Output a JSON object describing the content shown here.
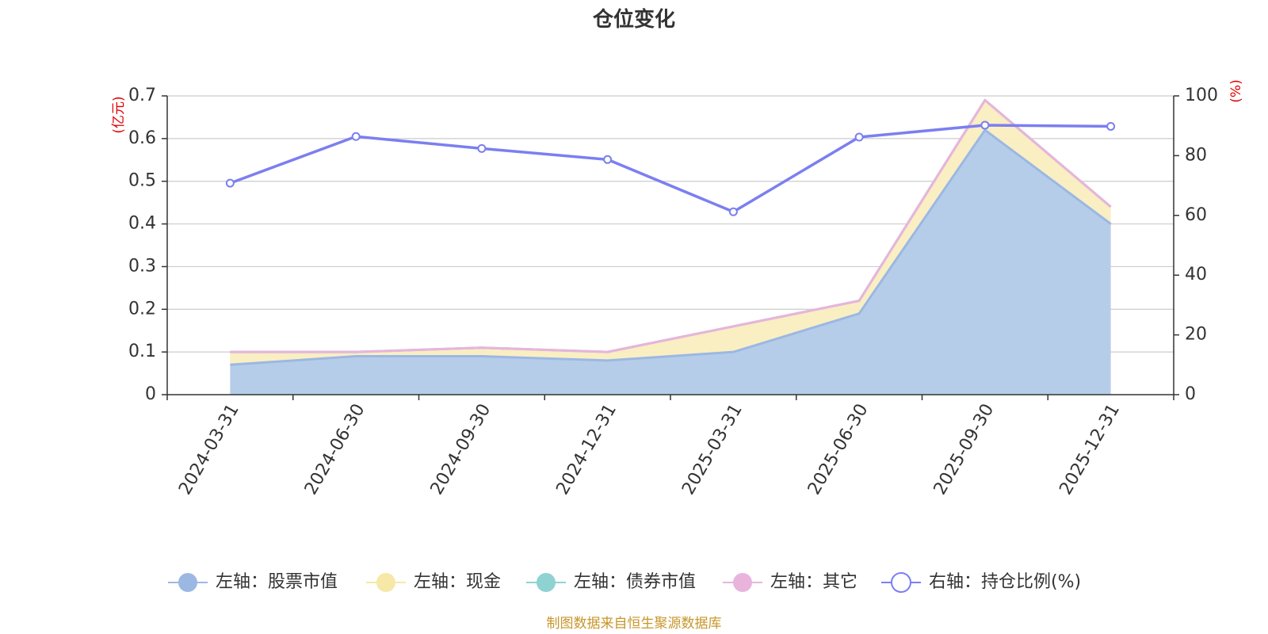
{
  "title": "仓位变化",
  "source": "制图数据来自恒生聚源数据库",
  "colors": {
    "stock": "#9bb8e3",
    "stock_fill": "#b6cdea",
    "cash": "#f6e8a6",
    "cash_fill": "#faedc0",
    "bond": "#8fd2d2",
    "other": "#e8b4dc",
    "ratio": "#7b7ff0",
    "unit": "#e00000",
    "source": "#c8962a"
  },
  "chart_data": {
    "type": "area",
    "categories": [
      "2024-03-31",
      "2024-06-30",
      "2024-09-30",
      "2024-12-31",
      "2025-03-31",
      "2025-06-30",
      "2025-09-30",
      "2025-12-31"
    ],
    "left_axis": {
      "unit": "(亿元)",
      "ylim": [
        0,
        0.7
      ],
      "ticks": [
        "0",
        "0.1",
        "0.2",
        "0.3",
        "0.4",
        "0.5",
        "0.6",
        "0.7"
      ]
    },
    "right_axis": {
      "unit": "(%)",
      "ylim": [
        0,
        100
      ],
      "ticks": [
        "0",
        "20",
        "40",
        "60",
        "80",
        "100"
      ]
    },
    "series": [
      {
        "name": "左轴：股票市值",
        "axis": "left",
        "stacked": true,
        "values": [
          0.07,
          0.09,
          0.09,
          0.08,
          0.1,
          0.19,
          0.62,
          0.4
        ]
      },
      {
        "name": "左轴：现金",
        "axis": "left",
        "stacked": true,
        "values": [
          0.03,
          0.01,
          0.02,
          0.02,
          0.06,
          0.03,
          0.07,
          0.04
        ]
      },
      {
        "name": "左轴：债券市值",
        "axis": "left",
        "stacked": true,
        "values": [
          0,
          0,
          0,
          0,
          0,
          0,
          0,
          0
        ]
      },
      {
        "name": "左轴：其它",
        "axis": "left",
        "stacked": true,
        "values": [
          0,
          0,
          0,
          0,
          0,
          0,
          0,
          0
        ]
      },
      {
        "name": "右轴：持仓比例(%)",
        "axis": "right",
        "type": "line",
        "values": [
          70.8,
          86.4,
          82.4,
          78.7,
          61.2,
          86.2,
          90.2,
          89.8
        ]
      }
    ],
    "grid": true,
    "legend_position": "bottom"
  }
}
